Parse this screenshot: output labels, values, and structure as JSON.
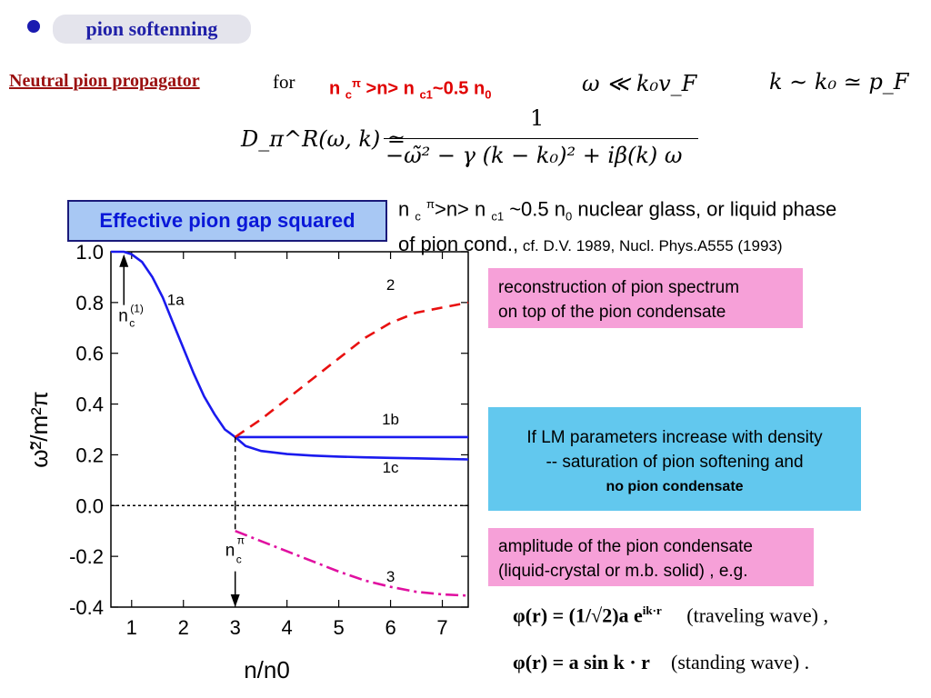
{
  "topic": {
    "title": "pion softenning"
  },
  "header": {
    "heading": "Neutral pion propagator",
    "for_word": "for",
    "condition": {
      "n": "n",
      "c": "c",
      "pi": "π",
      "mid": ">n> n",
      "c1": "c1",
      "approx": "~0.5 n",
      "zero": "0"
    },
    "regime": "ω ≪ k₀v_F",
    "momentum": "k ∼ k₀ ≃ p_F",
    "propagator": {
      "lhs": "D_π^R(ω, k) ≃",
      "numerator": "1",
      "denominator": "−ω̃² − γ (k − k₀)² + iβ(k) ω"
    }
  },
  "gap_label": "Effective pion gap squared",
  "phase_note": {
    "n": "n ",
    "c": "c",
    "pi": "π",
    "mid": ">n> n ",
    "c1": "c1",
    "approx": " ~0.5 n",
    "zero": "0",
    "rest": " nuclear glass, or liquid phase",
    "line2": "of pion cond.,",
    "cite": " cf. D.V. 1989, Nucl. Phys.A555 (1993)"
  },
  "boxes": {
    "reconstruction": [
      "reconstruction of pion spectrum",
      "on top of the pion condensate"
    ],
    "lm_params": [
      "If LM parameters increase with density",
      "-- saturation of pion softening and"
    ],
    "lm_bold": "no pion condensate",
    "amplitude": [
      "amplitude of the pion condensate",
      "(liquid-crystal or m.b. solid) , e.g."
    ]
  },
  "equations": {
    "traveling": {
      "formula": "φ(r) = (1/√2)a e",
      "exp": "ik·r",
      "label": "(traveling wave) ,"
    },
    "standing": {
      "formula": "φ(r) = a sin k · r",
      "label": "(standing wave) ."
    }
  },
  "chart_data": {
    "type": "line",
    "title": "",
    "xlabel": "n/n0",
    "ylabel": "ω̃²/m²π",
    "xlim": [
      0.6,
      7.5
    ],
    "ylim": [
      -0.4,
      1.0
    ],
    "xticks": [
      "1",
      "2",
      "3",
      "4",
      "5",
      "6",
      "7"
    ],
    "yticks": [
      "1.0",
      "0.8",
      "0.6",
      "0.4",
      "0.2",
      "0.0",
      "-0.2",
      "-0.4"
    ],
    "grid": false,
    "series": [
      {
        "name": "1a",
        "style": "solid",
        "color": "#1a1aee",
        "x": [
          0.6,
          0.85,
          1.0,
          1.2,
          1.4,
          1.6,
          1.8,
          2.0,
          2.2,
          2.4,
          2.6,
          2.8,
          3.0
        ],
        "y": [
          1.0,
          1.0,
          0.99,
          0.96,
          0.9,
          0.82,
          0.72,
          0.62,
          0.52,
          0.43,
          0.36,
          0.3,
          0.27
        ]
      },
      {
        "name": "1b",
        "style": "solid",
        "color": "#1a1aee",
        "x": [
          3.0,
          7.5
        ],
        "y": [
          0.27,
          0.27
        ]
      },
      {
        "name": "1c",
        "style": "solid",
        "color": "#1a1aee",
        "x": [
          3.0,
          3.2,
          3.5,
          4.0,
          4.5,
          5.0,
          5.5,
          6.0,
          6.5,
          7.0,
          7.5
        ],
        "y": [
          0.27,
          0.235,
          0.215,
          0.203,
          0.197,
          0.193,
          0.19,
          0.188,
          0.186,
          0.184,
          0.182
        ]
      },
      {
        "name": "2",
        "style": "dashed",
        "color": "#e81010",
        "x": [
          3.0,
          3.5,
          4.0,
          4.5,
          5.0,
          5.5,
          6.0,
          6.5,
          7.0,
          7.5
        ],
        "y": [
          0.27,
          0.34,
          0.42,
          0.5,
          0.58,
          0.66,
          0.72,
          0.76,
          0.78,
          0.8
        ]
      },
      {
        "name": "3",
        "style": "dashdot",
        "color": "#e010a0",
        "x": [
          3.0,
          3.5,
          4.0,
          4.5,
          5.0,
          5.5,
          6.0,
          6.5,
          7.0,
          7.5
        ],
        "y": [
          -0.1,
          -0.14,
          -0.18,
          -0.22,
          -0.26,
          -0.295,
          -0.32,
          -0.34,
          -0.35,
          -0.355
        ]
      }
    ],
    "reference_line": {
      "y": 0.0,
      "style": "dotted"
    },
    "annotations": [
      {
        "text": "1a",
        "x": 1.85,
        "y": 0.79
      },
      {
        "text": "2",
        "x": 6.0,
        "y": 0.85
      },
      {
        "text": "1b",
        "x": 6.0,
        "y": 0.32
      },
      {
        "text": "1c",
        "x": 6.0,
        "y": 0.13
      },
      {
        "text": "3",
        "x": 6.0,
        "y": -0.3
      }
    ],
    "markers": [
      {
        "label": "n",
        "sub": "c",
        "sup": "(1)",
        "x": 0.85,
        "y_from": 0.79,
        "y_to": 0.99
      },
      {
        "label": "n",
        "sub": "c",
        "sup": "π",
        "x": 3.0,
        "y_from": -0.08,
        "y_to": -0.4
      }
    ]
  }
}
